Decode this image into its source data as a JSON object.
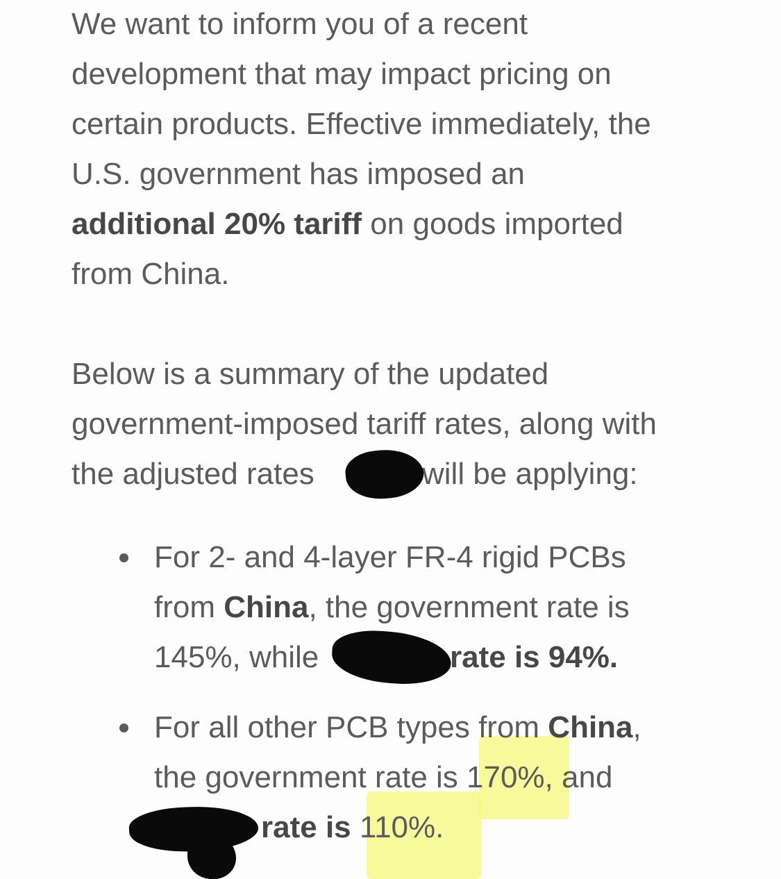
{
  "paragraph1": {
    "lines": [
      "We want to inform you of a recent",
      "development that may impact pricing on",
      "certain products. Effective immediately, the",
      "U.S. government has imposed an"
    ],
    "bold": "additional 20% tariff",
    "line5_rest": " on goods imported",
    "line6": "from China."
  },
  "paragraph2": {
    "line1": "Below is a summary of the updated",
    "line2": "government-imposed tariff rates, along with",
    "line3_before": "the adjusted rates",
    "line3_after": "will be applying:"
  },
  "bullets": [
    {
      "line1": "For 2- and 4-layer FR-4 rigid PCBs",
      "line2_pre": "from ",
      "line2_bold": "China",
      "line2_post": ", the government rate is",
      "line3_pre": "145%, while",
      "line3_bold": "rate is 94%."
    },
    {
      "line1_pre": "For all other PCB types from ",
      "line1_bold": "China",
      "line1_post": ",",
      "line2": "the government rate is 170%, and",
      "line3_bold": "rate is",
      "line3_rate": " 110%."
    }
  ],
  "colors": {
    "text": "#5b5b5b",
    "highlight": "#f6f77a",
    "redaction": "#0a0a0a"
  }
}
